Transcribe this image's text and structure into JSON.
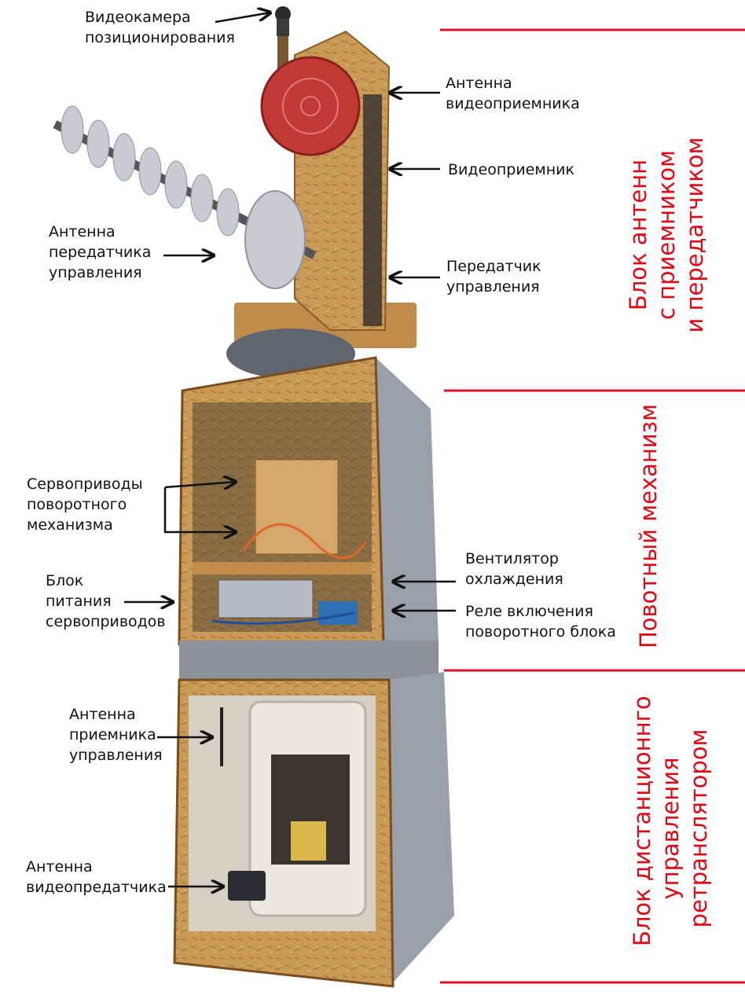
{
  "colors": {
    "accent_red": "#e30613",
    "divider_red": "#d9132a",
    "osb_wood": "#c99a55",
    "grey_panel": "#9aa0aa",
    "antenna_red": "#c23a36",
    "metal": "#b9bec6"
  },
  "callouts": {
    "camera": [
      "Видеокамера",
      "позиционирования"
    ],
    "rx_antenna": [
      "Антенна",
      "видеоприемника"
    ],
    "video_receiver": [
      "Видеоприемник"
    ],
    "tx_antenna": [
      "Антенна",
      "передатчика",
      "управления"
    ],
    "control_tx": [
      "Передатчик",
      "управления"
    ],
    "servos": [
      "Сервоприводы",
      "поворотного",
      "механизма"
    ],
    "fan": [
      "Вентилятор",
      "охлаждения"
    ],
    "psu": [
      "Блок",
      "питания",
      "сервоприводов"
    ],
    "relay": [
      "Реле включения",
      "поворотного блока"
    ],
    "ctrl_rx_antenna": [
      "Антенна",
      "приемника",
      "управления"
    ],
    "video_tx_antenna": [
      "Антенна",
      "видеопредатчика"
    ]
  },
  "sections": {
    "antennas": [
      "Блок антенн",
      "с приемником",
      "и передатчиком"
    ],
    "rotator": [
      "Повотный механизм"
    ],
    "remote": [
      "Блок дистанционнго",
      "управления",
      "ретранслятором"
    ]
  }
}
